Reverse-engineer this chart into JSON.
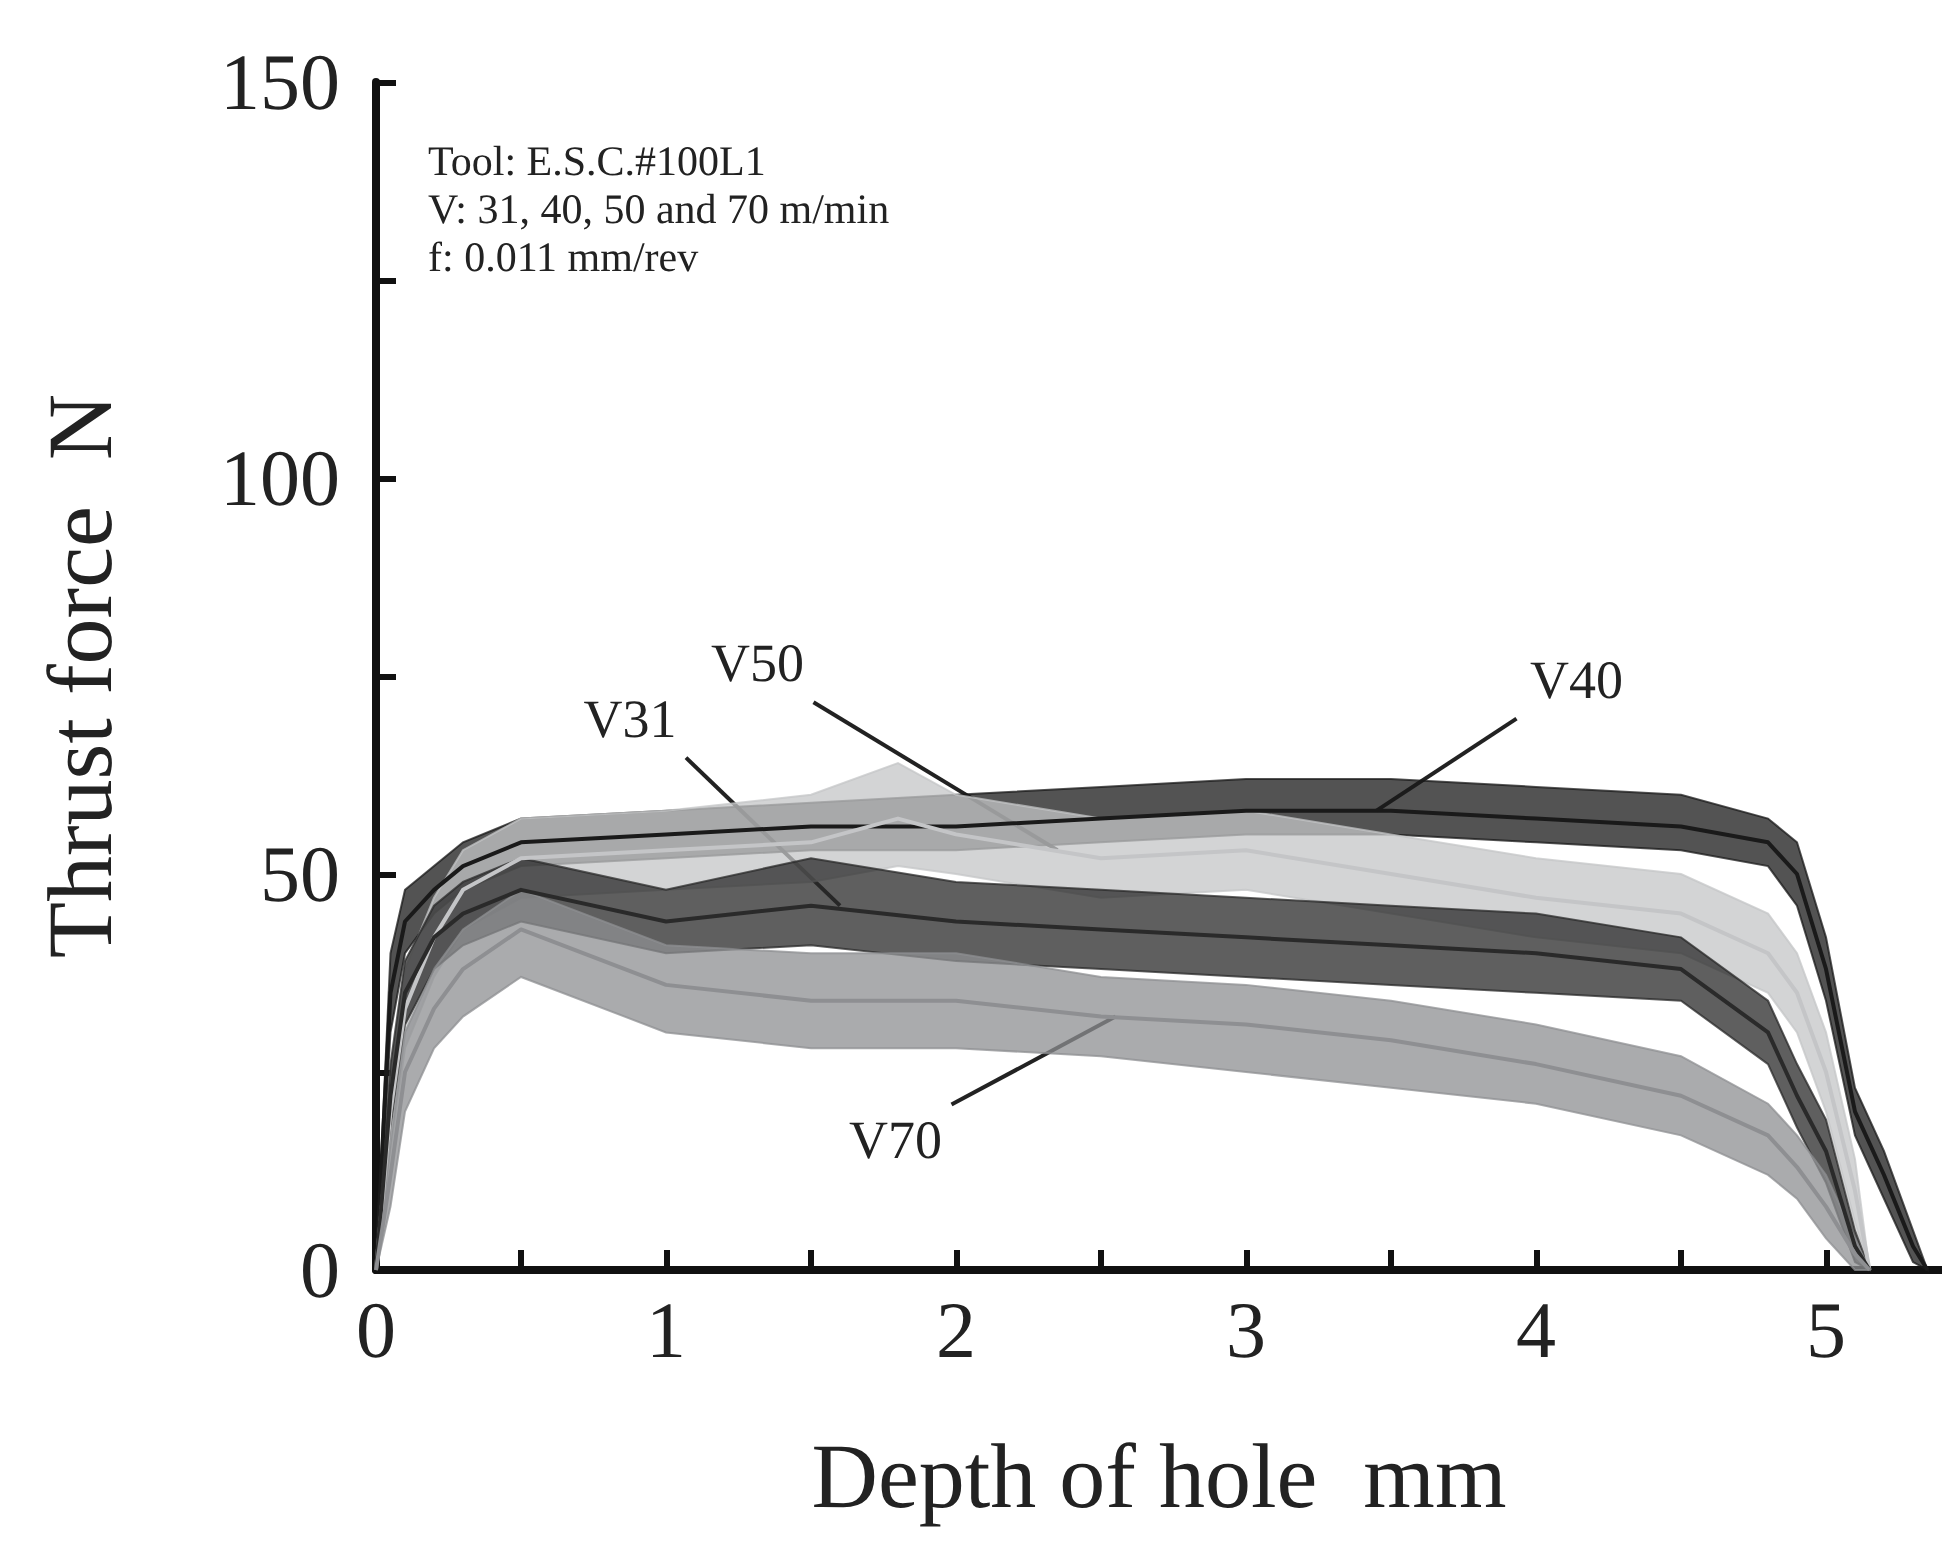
{
  "chart_data": {
    "type": "line",
    "xlabel": "Depth of hole  mm",
    "ylabel": "Thrust force  N",
    "xlim": [
      0,
      5.4
    ],
    "xticks": [
      0,
      1,
      2,
      3,
      4,
      5
    ],
    "ylim": [
      0,
      150
    ],
    "yticks": [
      0,
      50,
      100,
      150
    ],
    "grid": false,
    "marker": "none",
    "line_style": "solid",
    "series": [
      {
        "color": "#1a1a1a",
        "x": [
          0,
          0.05,
          0.1,
          0.2,
          0.3,
          0.5,
          1,
          1.5,
          2,
          2.5,
          3,
          3.5,
          4,
          4.5,
          4.8,
          4.9,
          5.0,
          5.1,
          5.2,
          5.3,
          5.35
        ],
        "values": [
          0,
          35,
          44,
          48,
          51,
          54,
          55,
          56,
          56,
          57,
          58,
          58,
          57,
          56,
          54,
          50,
          38,
          20,
          12,
          3,
          0
        ],
        "lower": [
          0,
          30,
          40,
          45,
          48,
          51,
          52,
          53,
          53,
          54,
          55,
          55,
          54,
          53,
          51,
          46,
          34,
          17,
          9,
          1,
          0
        ],
        "upper": [
          0,
          40,
          48,
          51,
          54,
          57,
          58,
          59,
          60,
          61,
          62,
          62,
          61,
          60,
          57,
          54,
          42,
          23,
          15,
          5,
          0
        ]
      },
      {
        "color": "#c4c5c7",
        "x": [
          0,
          0.05,
          0.1,
          0.2,
          0.3,
          0.5,
          1,
          1.5,
          1.8,
          2,
          2.5,
          3,
          3.5,
          4,
          4.5,
          4.8,
          4.9,
          5.0,
          5.1,
          5.15
        ],
        "values": [
          0,
          20,
          33,
          42,
          48,
          52,
          53,
          54,
          57,
          55,
          52,
          53,
          50,
          47,
          45,
          40,
          35,
          25,
          10,
          0
        ],
        "lower": [
          0,
          15,
          28,
          37,
          43,
          47,
          48,
          49,
          51,
          50,
          47,
          48,
          45,
          42,
          40,
          35,
          30,
          20,
          6,
          0
        ],
        "upper": [
          0,
          25,
          38,
          47,
          53,
          57,
          58,
          60,
          64,
          60,
          57,
          58,
          55,
          52,
          50,
          45,
          40,
          30,
          14,
          0
        ]
      },
      {
        "color": "#2a2a2a",
        "x": [
          0,
          0.05,
          0.1,
          0.2,
          0.3,
          0.5,
          1,
          1.5,
          2,
          2.5,
          3,
          3.5,
          4,
          4.5,
          4.8,
          4.9,
          5.0,
          5.1,
          5.15
        ],
        "values": [
          0,
          22,
          35,
          42,
          45,
          48,
          44,
          46,
          44,
          43,
          42,
          41,
          40,
          38,
          30,
          22,
          15,
          3,
          0
        ],
        "lower": [
          0,
          18,
          31,
          38,
          41,
          44,
          40,
          41,
          39,
          38,
          37,
          36,
          35,
          34,
          26,
          18,
          11,
          1,
          0
        ],
        "upper": [
          0,
          26,
          39,
          46,
          49,
          52,
          48,
          52,
          49,
          48,
          47,
          46,
          45,
          42,
          34,
          26,
          19,
          5,
          0
        ]
      },
      {
        "color": "#8e8f92",
        "x": [
          0,
          0.05,
          0.1,
          0.2,
          0.3,
          0.5,
          1,
          1.5,
          2,
          2.5,
          3,
          3.5,
          4,
          4.5,
          4.8,
          4.9,
          5.0,
          5.1,
          5.15
        ],
        "values": [
          0,
          12,
          25,
          33,
          38,
          43,
          36,
          34,
          34,
          32,
          31,
          29,
          26,
          22,
          17,
          13,
          8,
          2,
          0
        ],
        "lower": [
          0,
          8,
          20,
          28,
          32,
          37,
          30,
          28,
          28,
          27,
          25,
          23,
          21,
          17,
          12,
          9,
          4,
          0,
          0
        ],
        "upper": [
          0,
          16,
          30,
          38,
          43,
          48,
          41,
          40,
          40,
          37,
          36,
          34,
          31,
          27,
          21,
          17,
          12,
          4,
          0
        ]
      }
    ],
    "annotations": [
      "Tool: E.S.C.#100L1",
      "V: 31, 40, 50 and 70 m/min",
      "f: 0.011 mm/rev",
      {
        "text": "V31",
        "x": 1.6,
        "y": 46
      },
      {
        "text": "V50",
        "x": 2.35,
        "y": 53
      },
      {
        "text": "V40",
        "x": 3.45,
        "y": 58
      },
      {
        "text": "V70",
        "x": 2.55,
        "y": 32
      }
    ]
  }
}
